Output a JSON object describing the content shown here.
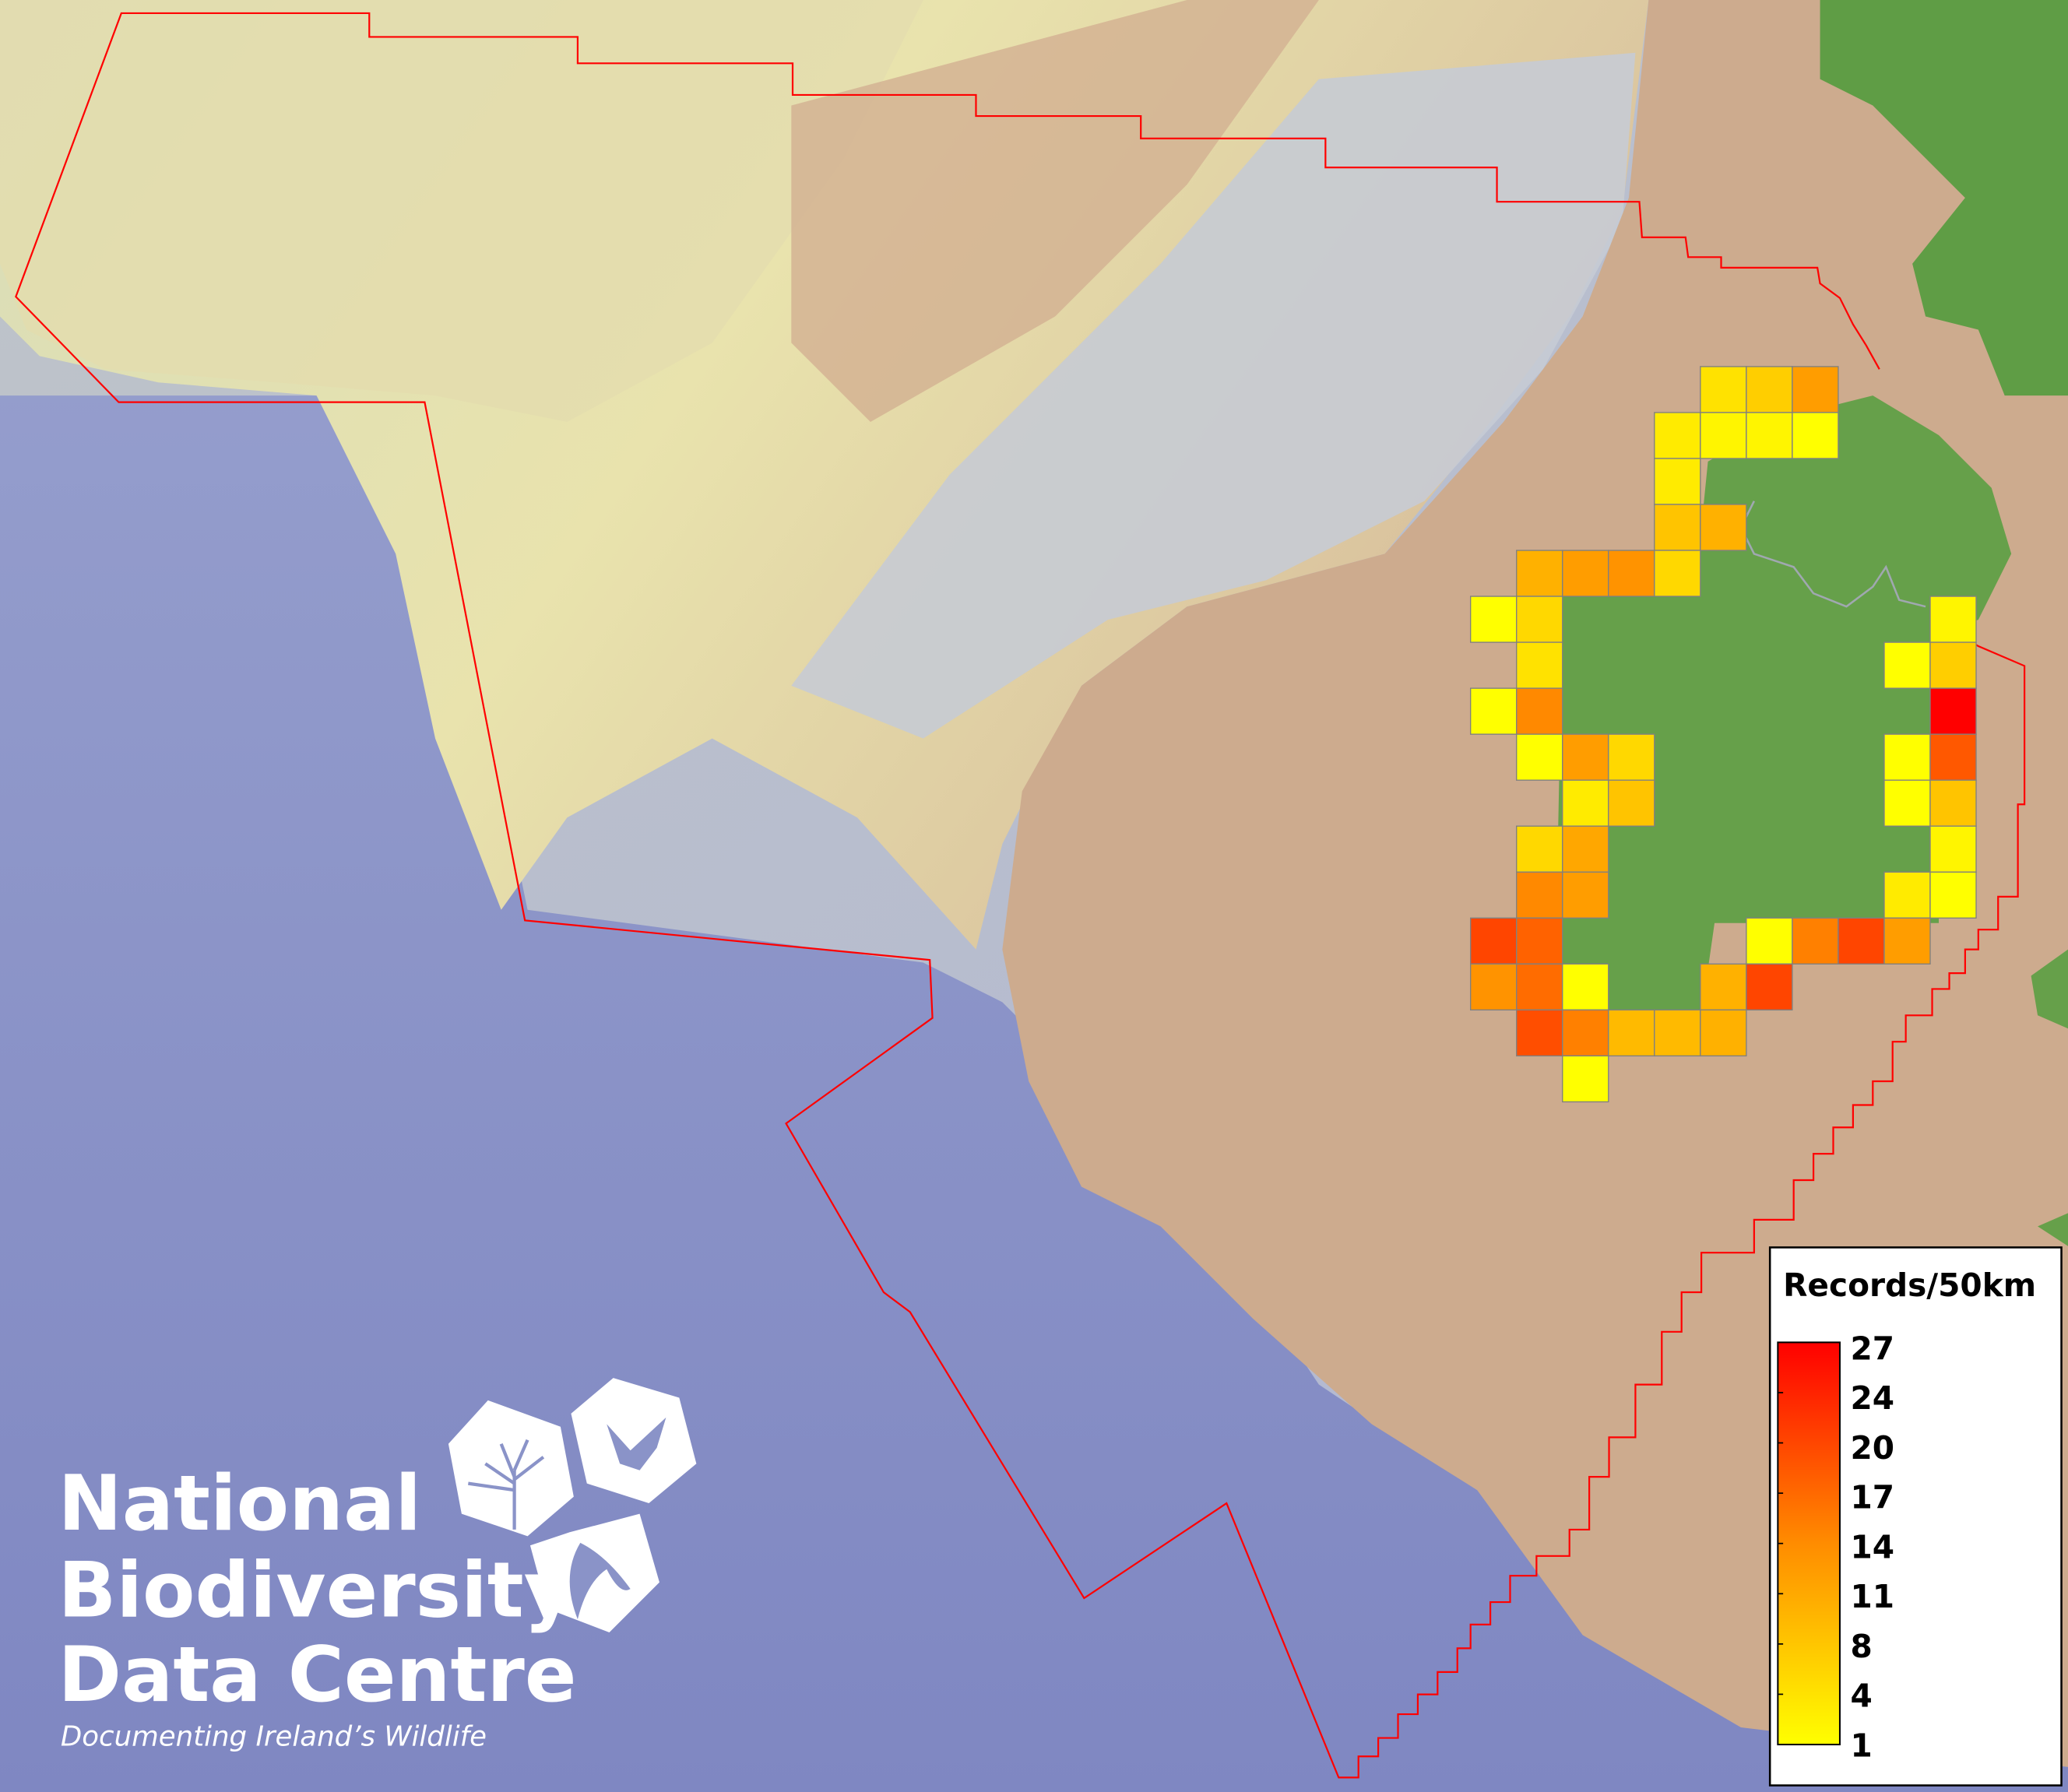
{
  "map": {
    "colors": {
      "sea_deep": "#8a93c8",
      "shelf": "#e6e4b4",
      "slope": "#c9ccd8",
      "land_low": "#cdab8e",
      "land_green": "#66a04a",
      "boundary": "#ff0000",
      "grid_min": "#ffff00",
      "grid_max": "#ff0000",
      "grid_border": "#808080"
    },
    "grid_records": [
      {
        "col": 5,
        "row": 0,
        "value": 4
      },
      {
        "col": 6,
        "row": 0,
        "value": 6
      },
      {
        "col": 7,
        "row": 0,
        "value": 11
      },
      {
        "col": 4,
        "row": 1,
        "value": 3
      },
      {
        "col": 5,
        "row": 1,
        "value": 2
      },
      {
        "col": 6,
        "row": 1,
        "value": 2
      },
      {
        "col": 7,
        "row": 1,
        "value": 1
      },
      {
        "col": 4,
        "row": 2,
        "value": 3
      },
      {
        "col": 4,
        "row": 3,
        "value": 7
      },
      {
        "col": 5,
        "row": 3,
        "value": 9
      },
      {
        "col": 1,
        "row": 4,
        "value": 9
      },
      {
        "col": 2,
        "row": 4,
        "value": 11
      },
      {
        "col": 3,
        "row": 4,
        "value": 12
      },
      {
        "col": 4,
        "row": 4,
        "value": 5
      },
      {
        "col": 0,
        "row": 5,
        "value": 1
      },
      {
        "col": 1,
        "row": 5,
        "value": 5
      },
      {
        "col": 10,
        "row": 5,
        "value": 2
      },
      {
        "col": 1,
        "row": 6,
        "value": 4
      },
      {
        "col": 9,
        "row": 6,
        "value": 1
      },
      {
        "col": 10,
        "row": 6,
        "value": 6
      },
      {
        "col": 0,
        "row": 7,
        "value": 1
      },
      {
        "col": 1,
        "row": 7,
        "value": 13
      },
      {
        "col": 10,
        "row": 7,
        "value": 27
      },
      {
        "col": 1,
        "row": 8,
        "value": 1
      },
      {
        "col": 2,
        "row": 8,
        "value": 11
      },
      {
        "col": 3,
        "row": 8,
        "value": 5
      },
      {
        "col": 9,
        "row": 8,
        "value": 1
      },
      {
        "col": 10,
        "row": 8,
        "value": 18
      },
      {
        "col": 2,
        "row": 9,
        "value": 3
      },
      {
        "col": 3,
        "row": 9,
        "value": 7
      },
      {
        "col": 9,
        "row": 9,
        "value": 1
      },
      {
        "col": 10,
        "row": 9,
        "value": 7
      },
      {
        "col": 1,
        "row": 10,
        "value": 5
      },
      {
        "col": 2,
        "row": 10,
        "value": 10
      },
      {
        "col": 10,
        "row": 10,
        "value": 2
      },
      {
        "col": 1,
        "row": 11,
        "value": 13
      },
      {
        "col": 2,
        "row": 11,
        "value": 11
      },
      {
        "col": 9,
        "row": 11,
        "value": 3
      },
      {
        "col": 10,
        "row": 11,
        "value": 1
      },
      {
        "col": 0,
        "row": 12,
        "value": 20
      },
      {
        "col": 1,
        "row": 12,
        "value": 17
      },
      {
        "col": 6,
        "row": 12,
        "value": 1
      },
      {
        "col": 7,
        "row": 12,
        "value": 14
      },
      {
        "col": 8,
        "row": 12,
        "value": 20
      },
      {
        "col": 9,
        "row": 12,
        "value": 11
      },
      {
        "col": 0,
        "row": 13,
        "value": 12
      },
      {
        "col": 1,
        "row": 13,
        "value": 16
      },
      {
        "col": 2,
        "row": 13,
        "value": 1
      },
      {
        "col": 5,
        "row": 13,
        "value": 9
      },
      {
        "col": 6,
        "row": 13,
        "value": 20
      },
      {
        "col": 1,
        "row": 14,
        "value": 19
      },
      {
        "col": 2,
        "row": 14,
        "value": 14
      },
      {
        "col": 3,
        "row": 14,
        "value": 8
      },
      {
        "col": 4,
        "row": 14,
        "value": 8
      },
      {
        "col": 5,
        "row": 14,
        "value": 9
      },
      {
        "col": 2,
        "row": 15,
        "value": 1
      }
    ]
  },
  "legend": {
    "title": "Records/50km",
    "min": 1,
    "max": 27,
    "ticks": [
      "27",
      "24",
      "20",
      "17",
      "14",
      "11",
      "8",
      "4",
      "1"
    ]
  },
  "logo": {
    "line1": "National",
    "line2": "Biodiversity",
    "line3": "Data Centre",
    "tagline": "Documenting Ireland’s Wildlife",
    "icons": [
      "tree-icon",
      "butterfly-icon",
      "seahorse-icon"
    ]
  }
}
